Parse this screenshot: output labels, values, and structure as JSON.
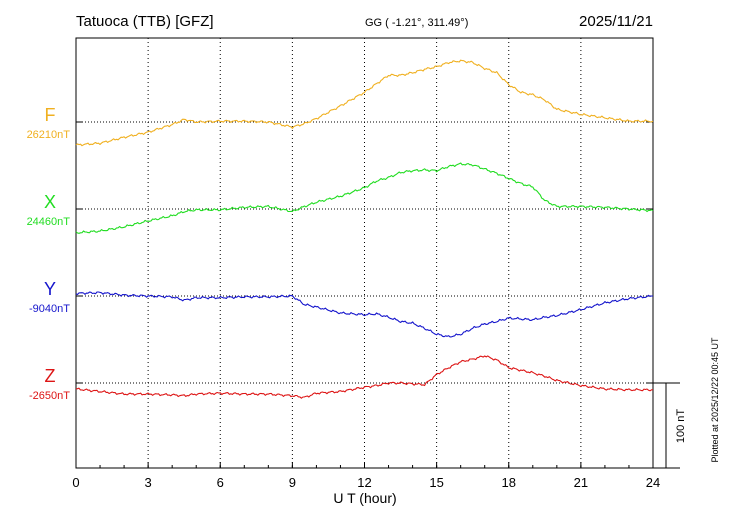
{
  "header": {
    "station": "Tatuoca (TTB)  [GFZ]",
    "coords": "GG ( -1.21°, 311.49°)",
    "date": "2025/11/21"
  },
  "plotted_note": "Plotted at 2025/12/22 00:45 UT",
  "scale_label": "100 nT",
  "chart_data": {
    "type": "line",
    "title": "Tatuoca (TTB)  [GFZ]",
    "xlabel": "U T (hour)",
    "ylabel": "",
    "xlim": [
      0,
      24
    ],
    "x_ticks": [
      "0",
      "3",
      "6",
      "9",
      "12",
      "15",
      "18",
      "21",
      "24"
    ],
    "grid": true,
    "units": "nT",
    "scale_bar_nT": 100,
    "x": [
      0,
      1,
      2,
      3,
      4,
      4.5,
      5,
      6,
      7,
      8,
      9,
      9.5,
      10,
      11,
      12,
      12.5,
      13,
      13.5,
      14,
      14.5,
      15,
      15.5,
      16,
      16.5,
      17,
      17.5,
      18,
      18.5,
      19,
      19.5,
      20,
      21,
      22,
      23,
      24
    ],
    "series": [
      {
        "name": "F",
        "baseline": "26210nT",
        "color": "#f0b020",
        "values": [
          -27,
          -25,
          -18,
          -12,
          -3,
          3,
          0,
          1,
          1,
          0,
          -6,
          -2,
          4,
          19,
          35,
          45,
          55,
          55,
          58,
          62,
          65,
          70,
          72,
          70,
          63,
          58,
          44,
          35,
          32,
          26,
          15,
          9,
          5,
          1,
          1
        ]
      },
      {
        "name": "X",
        "baseline": "24460nT",
        "color": "#22dd22",
        "values": [
          -28,
          -26,
          -21,
          -14,
          -8,
          -3,
          -1,
          -1,
          2,
          3,
          -3,
          3,
          8,
          15,
          25,
          33,
          37,
          43,
          45,
          46,
          45,
          50,
          53,
          52,
          47,
          42,
          36,
          30,
          26,
          10,
          3,
          3,
          2,
          0,
          -2
        ]
      },
      {
        "name": "Y",
        "baseline": "-9040nT",
        "color": "#1515cc",
        "values": [
          3,
          4,
          1,
          0,
          -1,
          -5,
          -2,
          -2,
          -1,
          -1,
          0,
          -10,
          -13,
          -20,
          -22,
          -21,
          -25,
          -30,
          -32,
          -38,
          -45,
          -48,
          -45,
          -38,
          -33,
          -30,
          -26,
          -27,
          -28,
          -25,
          -23,
          -16,
          -8,
          -3,
          0
        ]
      },
      {
        "name": "Z",
        "baseline": "-2650nT",
        "color": "#dd1515",
        "values": [
          -7,
          -10,
          -13,
          -13,
          -14,
          -15,
          -13,
          -12,
          -13,
          -13,
          -15,
          -17,
          -12,
          -10,
          -5,
          -3,
          0,
          0,
          -1,
          -2,
          10,
          18,
          25,
          28,
          32,
          27,
          18,
          15,
          12,
          8,
          3,
          -3,
          -7,
          -8,
          -8
        ]
      }
    ]
  }
}
